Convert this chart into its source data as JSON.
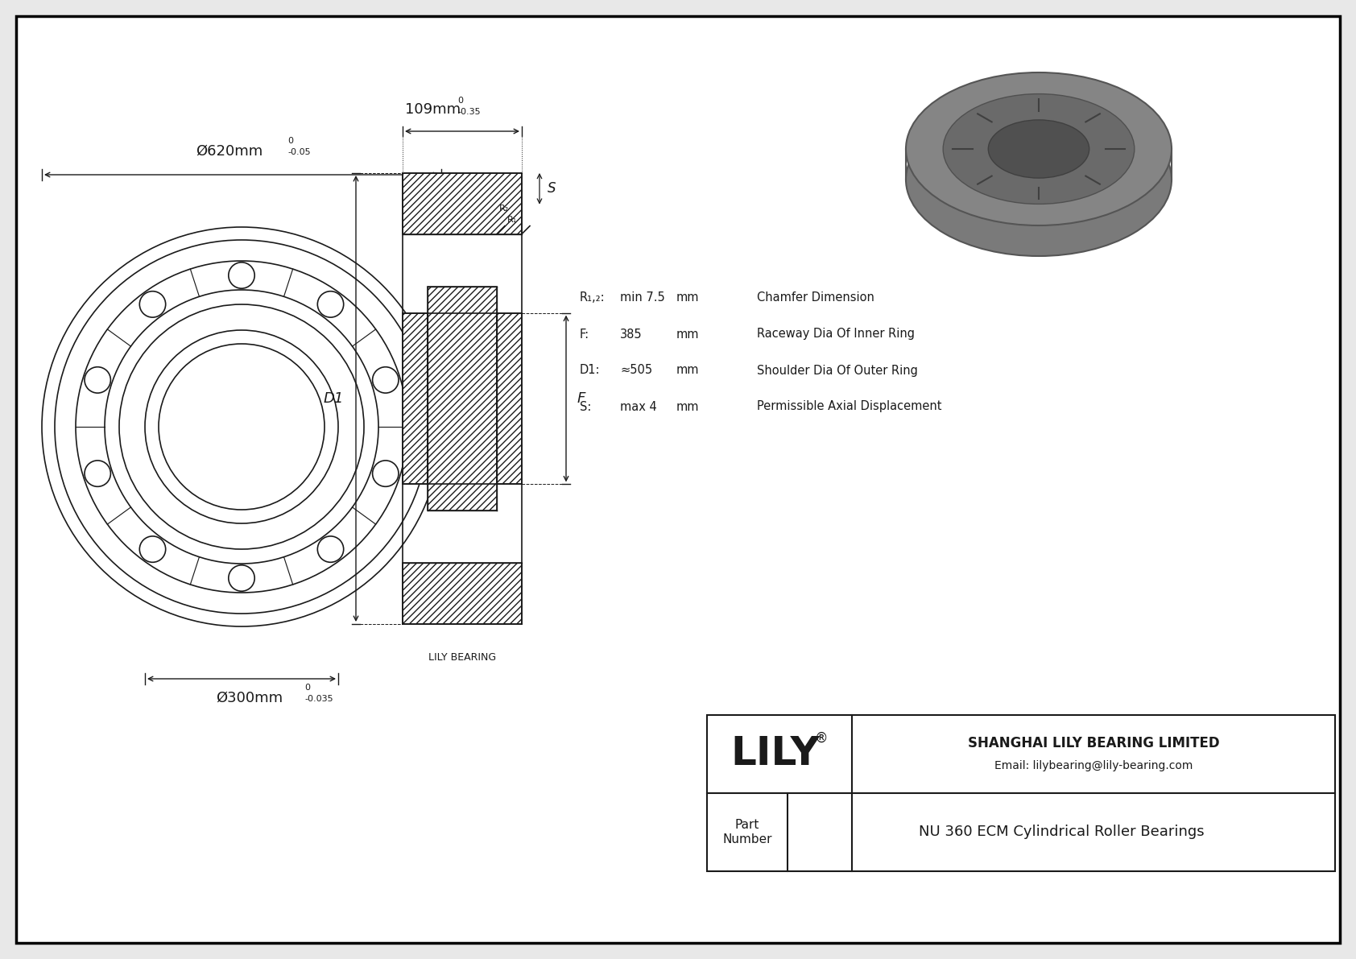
{
  "bg_color": "#e8e8e8",
  "drawing_bg": "#ffffff",
  "border_color": "#000000",
  "line_color": "#1a1a1a",
  "title": "NU 360 ECM Cylindrical Roller Bearings",
  "company": "SHANGHAI LILY BEARING LIMITED",
  "email": "Email: lilybearing@lily-bearing.com",
  "part_label": "Part\nNumber",
  "lily_text": "LILY",
  "lily_bearing_label": "LILY BEARING",
  "outer_dia_label": "Ø620mm",
  "outer_dia_tol_upper": "0",
  "outer_dia_tol_lower": "-0.05",
  "inner_dia_label": "Ø300mm",
  "inner_dia_tol_upper": "0",
  "inner_dia_tol_lower": "-0.035",
  "width_label": "109mm",
  "width_tol_upper": "0",
  "width_tol_lower": "-0.35",
  "d1_label": "D1",
  "f_label": "F",
  "s_label": "S",
  "r1_label": "R₁",
  "r2_label": "R₂",
  "spec_r_label": "R₁,₂:",
  "spec_r_val": "min 7.5",
  "spec_r_unit": "mm",
  "spec_r_desc": "Chamfer Dimension",
  "spec_f_label": "F:",
  "spec_f_val": "385",
  "spec_f_unit": "mm",
  "spec_f_desc": "Raceway Dia Of Inner Ring",
  "spec_d1_label": "D1:",
  "spec_d1_val": "≈505",
  "spec_d1_unit": "mm",
  "spec_d1_desc": "Shoulder Dia Of Outer Ring",
  "spec_s_label": "S:",
  "spec_s_val": "max 4",
  "spec_s_unit": "mm",
  "spec_s_desc": "Permissible Axial Displacement"
}
